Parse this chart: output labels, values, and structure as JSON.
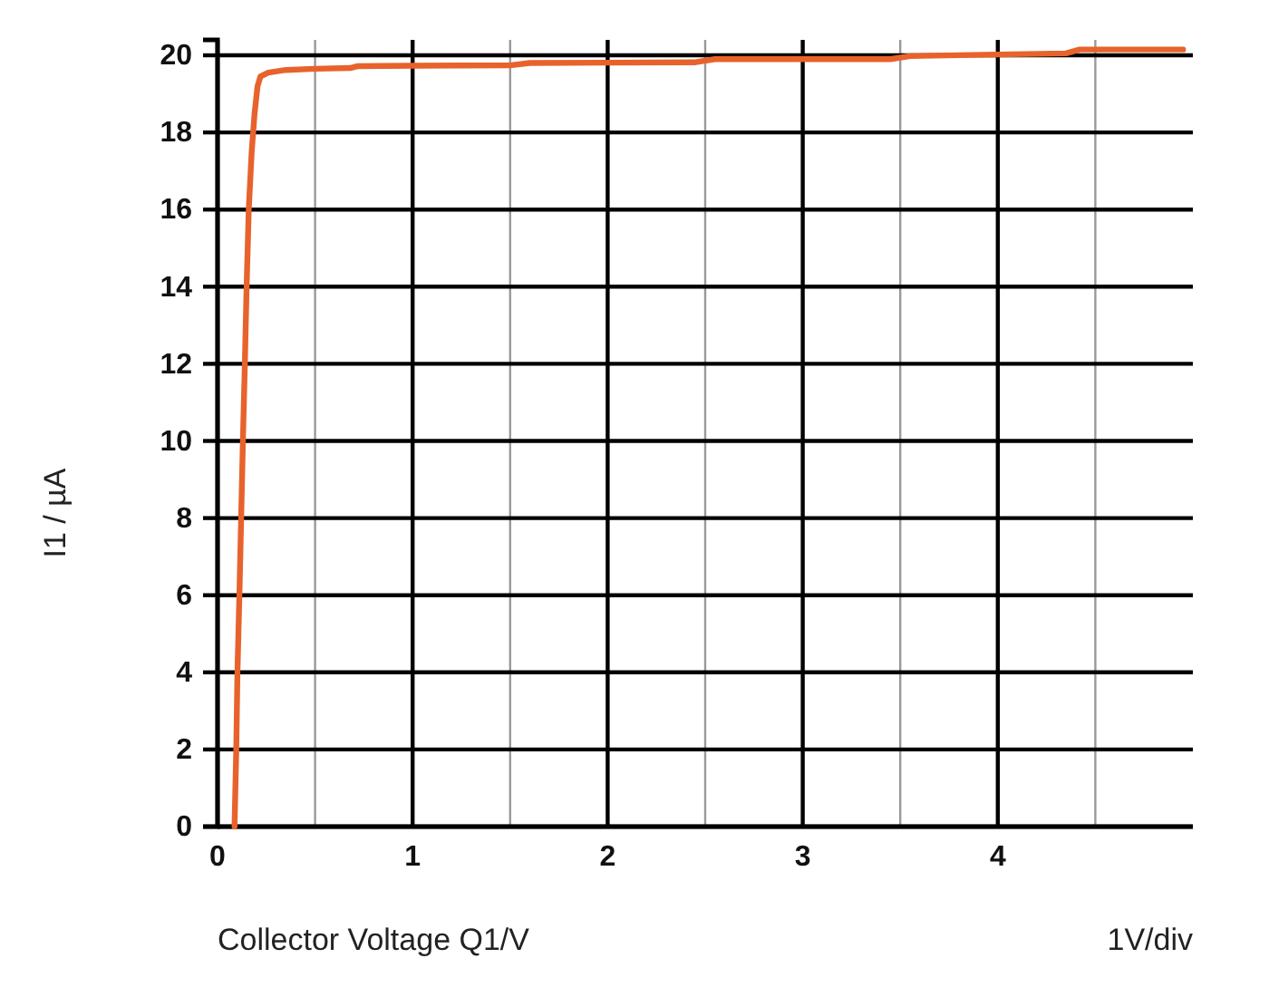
{
  "chart_data": {
    "type": "line",
    "xlabel": "Collector Voltage Q1/V",
    "ylabel": "I1 / µA",
    "annotations": [
      "1V/div"
    ],
    "x": [
      0.087,
      0.096,
      0.102,
      0.112,
      0.121,
      0.13,
      0.14,
      0.149,
      0.16,
      0.175,
      0.19,
      0.205,
      0.22,
      0.26,
      0.35,
      0.5,
      0.68,
      0.72,
      1.0,
      1.5,
      1.6,
      2.0,
      2.45,
      2.55,
      3.0,
      3.45,
      3.55,
      4.0,
      4.35,
      4.42,
      4.95
    ],
    "series": [
      {
        "color": "#e8622c",
        "values": [
          0,
          2,
          4,
          6,
          8,
          10,
          12,
          14,
          16,
          17.5,
          18.5,
          19.2,
          19.45,
          19.55,
          19.62,
          19.65,
          19.67,
          19.72,
          19.73,
          19.74,
          19.8,
          19.81,
          19.82,
          19.9,
          19.9,
          19.9,
          19.98,
          20.02,
          20.05,
          20.15,
          20.15
        ]
      }
    ],
    "xlim": [
      0,
      5
    ],
    "ylim": [
      0,
      20.4
    ],
    "xticks": [
      0,
      {
        "value": 0.5,
        "label": null
      },
      1,
      {
        "value": 1.5,
        "label": null
      },
      2,
      {
        "value": 2.5,
        "label": null
      },
      3,
      {
        "value": 3.5,
        "label": null
      },
      4,
      {
        "value": 4.5,
        "label": null
      }
    ],
    "yticks": [
      0,
      2,
      4,
      6,
      8,
      10,
      12,
      14,
      16,
      18,
      20
    ],
    "grid": true,
    "marker": "none",
    "line_style": "solid"
  }
}
